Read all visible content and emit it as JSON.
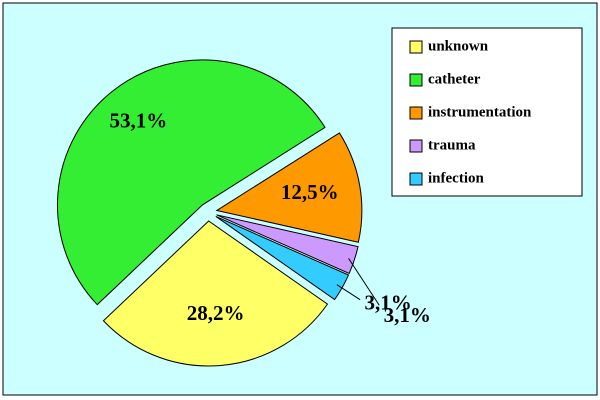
{
  "chart_data": {
    "type": "pie",
    "categories": [
      "unknown",
      "catheter",
      "instrumentation",
      "trauma",
      "infection"
    ],
    "values": [
      28.2,
      53.1,
      12.5,
      3.1,
      3.1
    ],
    "value_labels": [
      "28,2%",
      "53,1%",
      "12,5%",
      "3,1%",
      "3,1%"
    ],
    "colors": [
      "#ffff66",
      "#33ee33",
      "#ff9900",
      "#cc99ff",
      "#33ccff"
    ],
    "legend": "top-right"
  }
}
